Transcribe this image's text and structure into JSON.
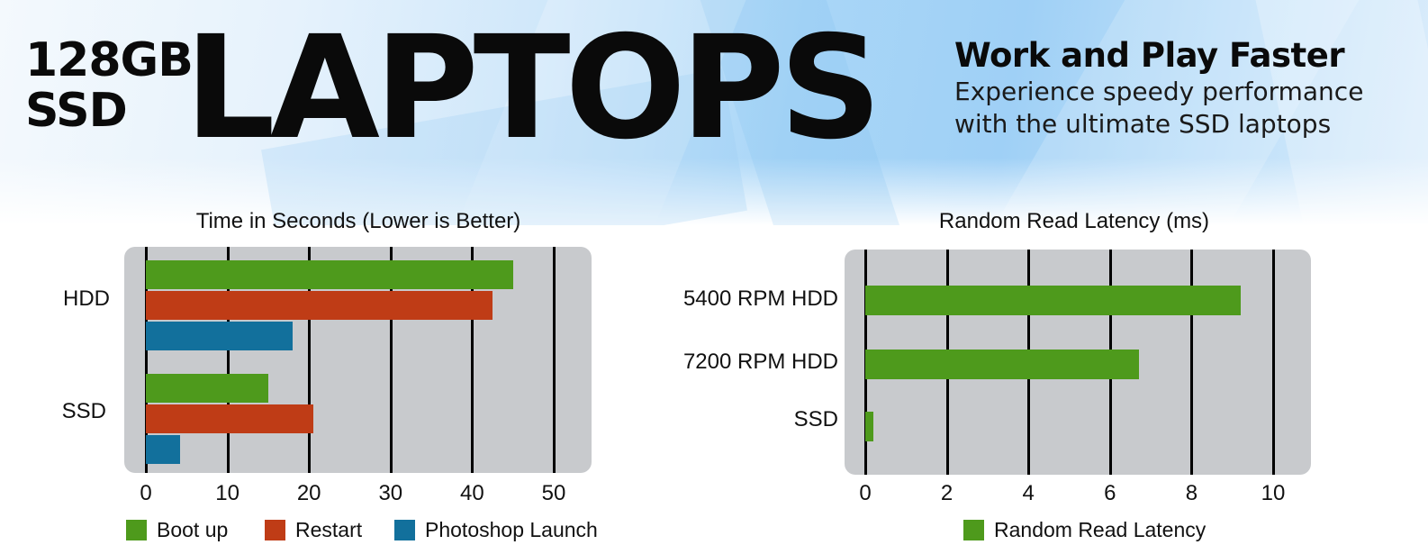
{
  "banner": {
    "brand_line1": "128GB",
    "brand_line2": "SSD",
    "brand_big": "LAPTOPS",
    "tagline_head": "Work and Play Faster",
    "tagline_sub1": "Experience speedy performance",
    "tagline_sub2": "with the ultimate SSD laptops"
  },
  "colors": {
    "boot": "#4e9a1c",
    "restart": "#bf3c16",
    "photoshop": "#12709c",
    "latency": "#4e9a1c",
    "plot_bg": "#c8cacd"
  },
  "chart_data": [
    {
      "type": "bar",
      "orientation": "horizontal",
      "title": "Time in Seconds (Lower is Better)",
      "xlabel": "",
      "ylabel": "",
      "categories": [
        "HDD",
        "SSD"
      ],
      "series": [
        {
          "name": "Boot up",
          "values": [
            45,
            15
          ]
        },
        {
          "name": "Restart",
          "values": [
            42.5,
            20.5
          ]
        },
        {
          "name": "Photoshop Launch",
          "values": [
            18,
            4.2
          ]
        }
      ],
      "xlim": [
        0,
        50
      ],
      "xticks": [
        "0",
        "10",
        "20",
        "30",
        "40",
        "50"
      ],
      "grid": true,
      "legend_position": "bottom"
    },
    {
      "type": "bar",
      "orientation": "horizontal",
      "title": "Random Read Latency (ms)",
      "xlabel": "",
      "ylabel": "",
      "categories": [
        "5400 RPM HDD",
        "7200 RPM HDD",
        "SSD"
      ],
      "series": [
        {
          "name": "Random Read Latency",
          "values": [
            9.2,
            6.7,
            0.2
          ]
        }
      ],
      "xlim": [
        0,
        10
      ],
      "xticks": [
        "0",
        "2",
        "4",
        "6",
        "8",
        "10"
      ],
      "grid": true,
      "legend_position": "bottom"
    }
  ]
}
